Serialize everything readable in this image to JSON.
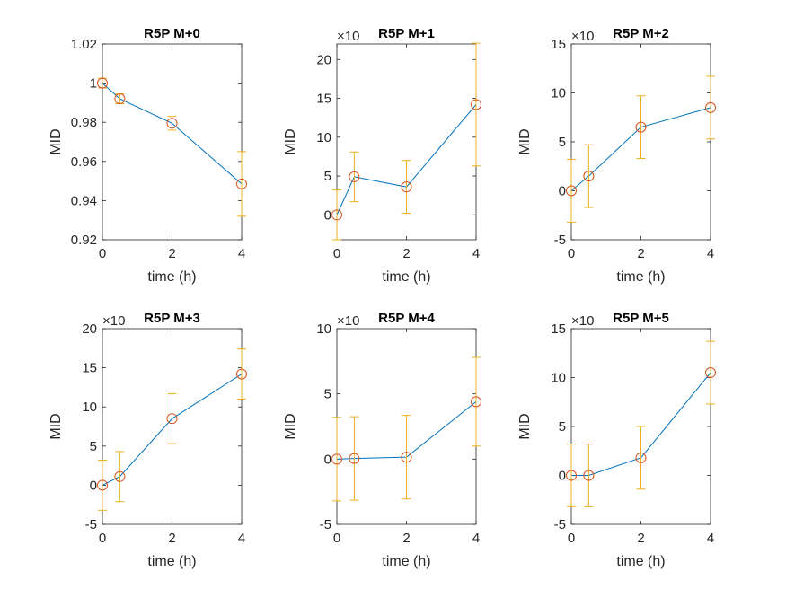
{
  "colors": {
    "line": "#0072BD",
    "marker": "#D95319",
    "errorbar": "#EDB120",
    "axis": "#262626",
    "background": "#ffffff"
  },
  "chart_data": [
    {
      "type": "line",
      "title": "R5P M+0",
      "xlabel": "time (h)",
      "ylabel": "MID",
      "multiplier": "",
      "x": [
        0,
        0.5,
        2,
        4
      ],
      "series": [
        {
          "values": [
            1.0,
            0.992,
            0.9795,
            0.9485
          ],
          "errors": [
            0.0025,
            0.0025,
            0.0035,
            0.0165
          ],
          "marker": "circle"
        }
      ],
      "xlim": [
        0,
        4
      ],
      "ylim": [
        0.92,
        1.02
      ],
      "xticks": [
        0,
        2,
        4
      ],
      "xtick_labels": [
        "0",
        "2",
        "4"
      ],
      "yticks": [
        0.92,
        0.94,
        0.96,
        0.98,
        1.0,
        1.02
      ],
      "ytick_labels": [
        "0.92",
        "0.94",
        "0.96",
        "0.98",
        "1",
        "1.02"
      ]
    },
    {
      "type": "line",
      "title": "R5P M+1",
      "xlabel": "time (h)",
      "ylabel": "MID",
      "multiplier": "×10",
      "x": [
        0,
        0.5,
        2,
        4
      ],
      "series": [
        {
          "values": [
            0,
            4.9,
            3.6,
            14.2
          ],
          "errors": [
            3.2,
            3.2,
            3.4,
            7.9
          ],
          "marker": "circle"
        }
      ],
      "xlim": [
        0,
        4
      ],
      "ylim": [
        -3.2,
        22
      ],
      "xticks": [
        0,
        2,
        4
      ],
      "xtick_labels": [
        "0",
        "2",
        "4"
      ],
      "yticks": [
        0,
        5,
        10,
        15,
        20
      ],
      "ytick_labels": [
        "0",
        "5",
        "10",
        "15",
        "20"
      ]
    },
    {
      "type": "line",
      "title": "R5P M+2",
      "xlabel": "time (h)",
      "ylabel": "MID",
      "multiplier": "×10",
      "x": [
        0,
        0.5,
        2,
        4
      ],
      "series": [
        {
          "values": [
            0,
            1.5,
            6.5,
            8.5
          ],
          "errors": [
            3.2,
            3.2,
            3.2,
            3.2
          ],
          "marker": "circle"
        }
      ],
      "xlim": [
        0,
        4
      ],
      "ylim": [
        -5,
        15
      ],
      "xticks": [
        0,
        2,
        4
      ],
      "xtick_labels": [
        "0",
        "2",
        "4"
      ],
      "yticks": [
        -5,
        0,
        5,
        10,
        15
      ],
      "ytick_labels": [
        "-5",
        "0",
        "5",
        "10",
        "15"
      ]
    },
    {
      "type": "line",
      "title": "R5P M+3",
      "xlabel": "time (h)",
      "ylabel": "MID",
      "multiplier": "×10",
      "x": [
        0,
        0.5,
        2,
        4
      ],
      "series": [
        {
          "values": [
            0,
            1.1,
            8.5,
            14.2
          ],
          "errors": [
            3.2,
            3.2,
            3.2,
            3.2
          ],
          "marker": "circle"
        }
      ],
      "xlim": [
        0,
        4
      ],
      "ylim": [
        -5,
        20
      ],
      "xticks": [
        0,
        2,
        4
      ],
      "xtick_labels": [
        "0",
        "2",
        "4"
      ],
      "yticks": [
        -5,
        0,
        5,
        10,
        15,
        20
      ],
      "ytick_labels": [
        "-5",
        "0",
        "5",
        "10",
        "15",
        "20"
      ]
    },
    {
      "type": "line",
      "title": "R5P M+4",
      "xlabel": "time (h)",
      "ylabel": "MID",
      "multiplier": "×10",
      "x": [
        0,
        0.5,
        2,
        4
      ],
      "series": [
        {
          "values": [
            0,
            0.05,
            0.15,
            4.4
          ],
          "errors": [
            3.2,
            3.2,
            3.2,
            3.4
          ],
          "marker": "circle"
        }
      ],
      "xlim": [
        0,
        4
      ],
      "ylim": [
        -5,
        10
      ],
      "xticks": [
        0,
        2,
        4
      ],
      "xtick_labels": [
        "0",
        "2",
        "4"
      ],
      "yticks": [
        -5,
        0,
        5,
        10
      ],
      "ytick_labels": [
        "-5",
        "0",
        "5",
        "10"
      ]
    },
    {
      "type": "line",
      "title": "R5P M+5",
      "xlabel": "time (h)",
      "ylabel": "MID",
      "multiplier": "×10",
      "x": [
        0,
        0.5,
        2,
        4
      ],
      "series": [
        {
          "values": [
            0,
            0,
            1.8,
            10.5
          ],
          "errors": [
            3.2,
            3.2,
            3.2,
            3.2
          ],
          "marker": "circle"
        }
      ],
      "xlim": [
        0,
        4
      ],
      "ylim": [
        -5,
        15
      ],
      "xticks": [
        0,
        2,
        4
      ],
      "xtick_labels": [
        "0",
        "2",
        "4"
      ],
      "yticks": [
        -5,
        0,
        5,
        10,
        15
      ],
      "ytick_labels": [
        "-5",
        "0",
        "5",
        "10",
        "15"
      ]
    }
  ]
}
